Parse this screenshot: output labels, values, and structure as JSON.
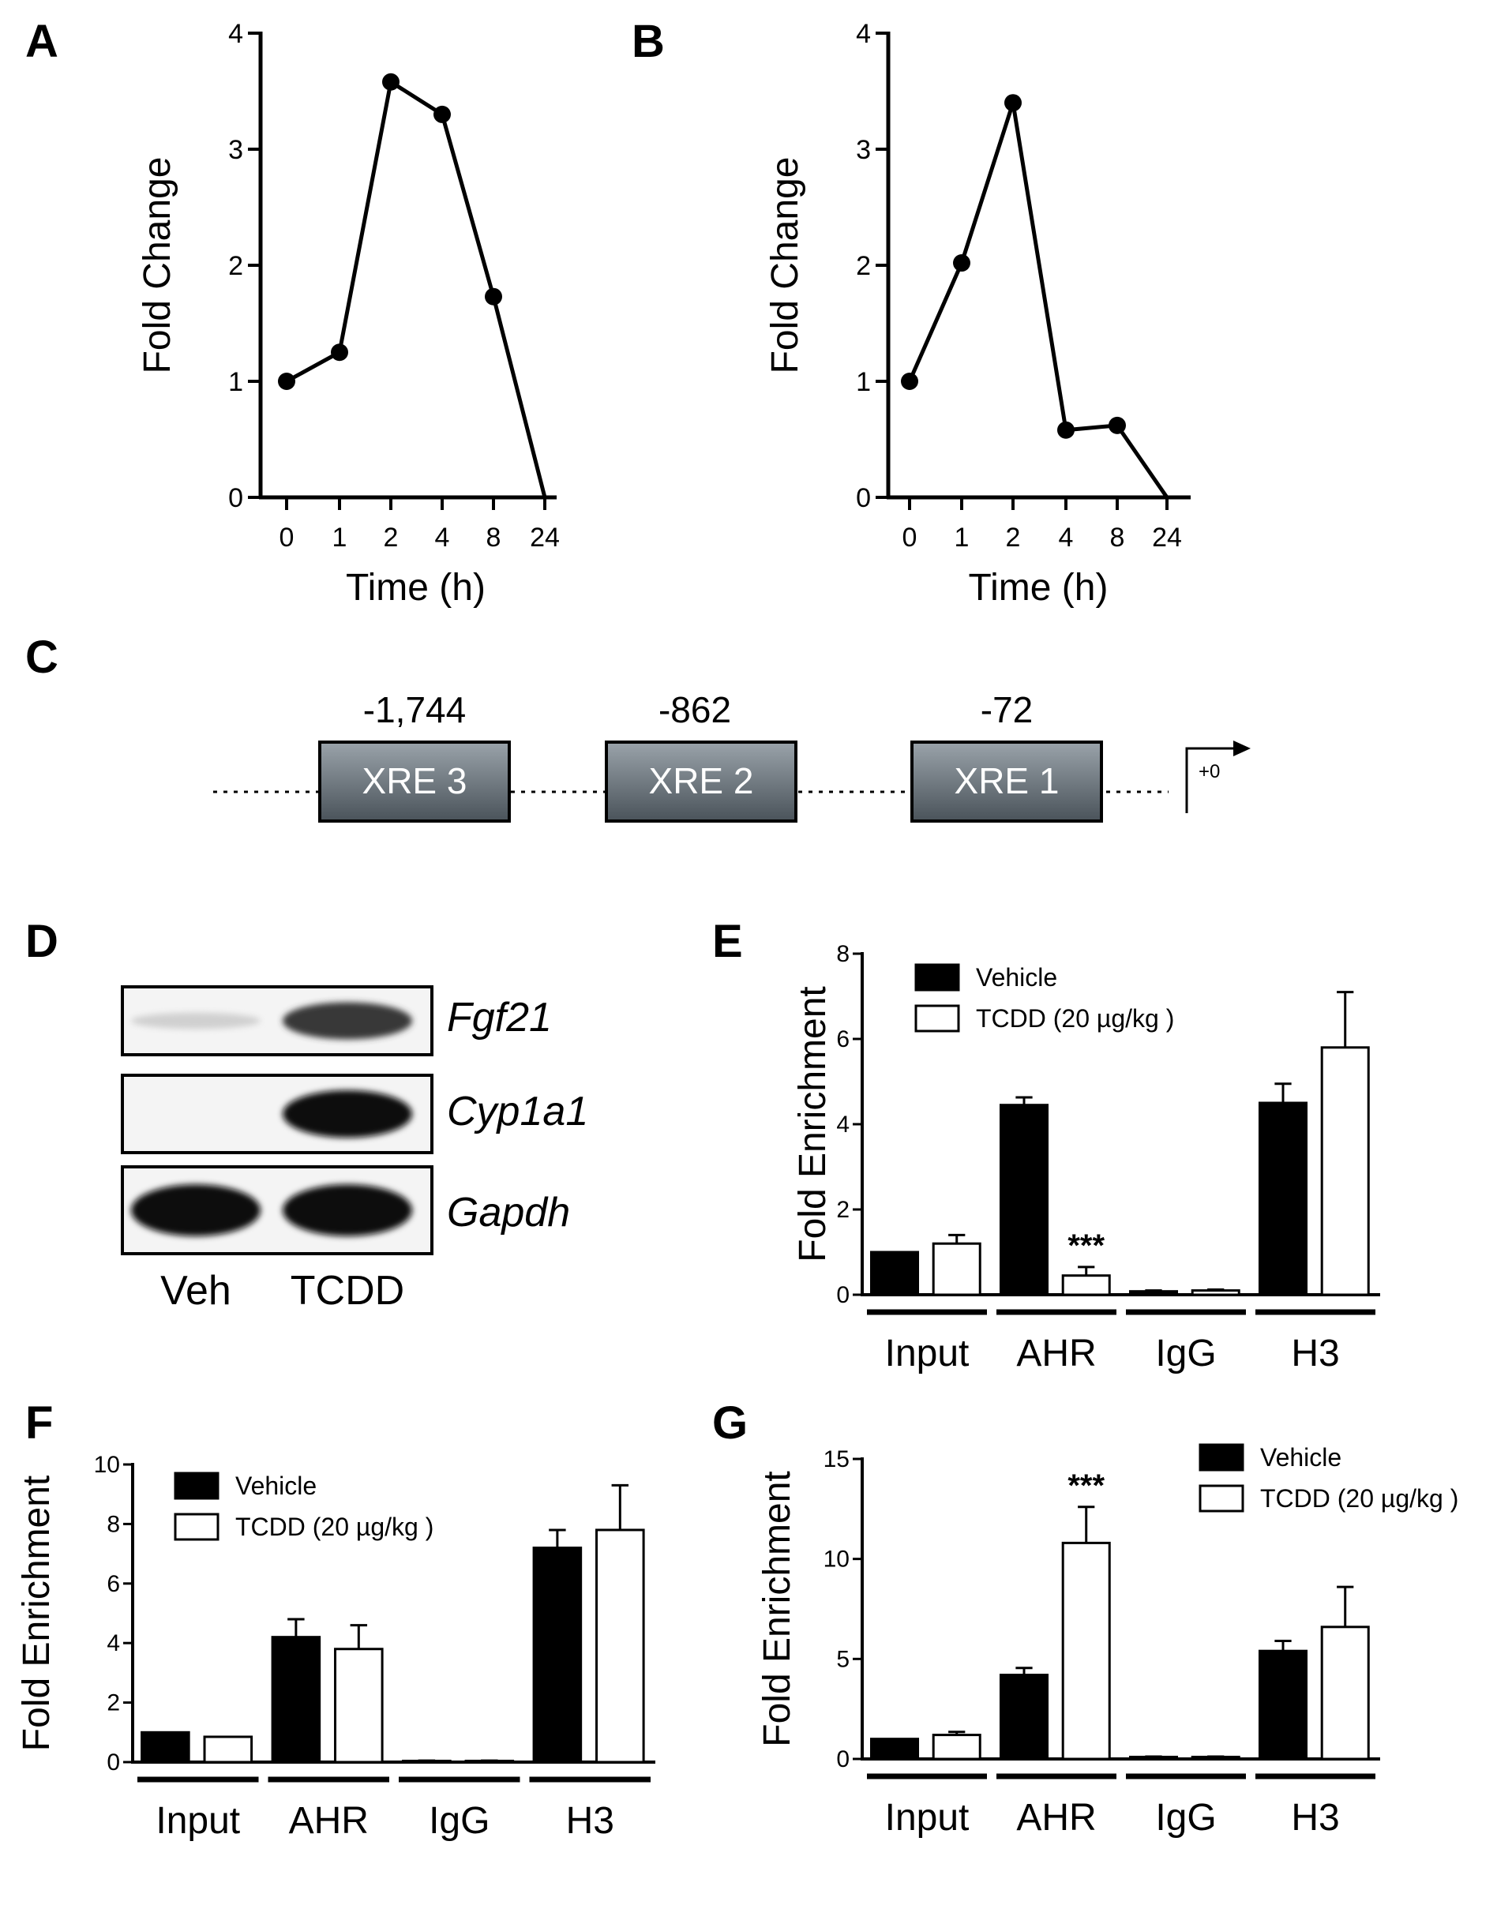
{
  "panel_labels": [
    "A",
    "B",
    "C",
    "D",
    "E",
    "F",
    "G"
  ],
  "chart_data": [
    {
      "panel": "A",
      "type": "line",
      "categories": [
        "0",
        "1",
        "2",
        "4",
        "8",
        "24"
      ],
      "values": [
        1.0,
        1.25,
        3.58,
        3.3,
        1.73,
        0.0
      ],
      "xlabel": "Time (h)",
      "ylabel": "Fold Change",
      "ylim": [
        0,
        4
      ],
      "yticks": [
        "0",
        "1",
        "2",
        "3",
        "4"
      ]
    },
    {
      "panel": "B",
      "type": "line",
      "categories": [
        "0",
        "1",
        "2",
        "4",
        "8",
        "24"
      ],
      "values": [
        1.0,
        2.02,
        3.4,
        0.58,
        0.62,
        0.0
      ],
      "xlabel": "Time (h)",
      "ylabel": "Fold Change",
      "ylim": [
        0,
        4
      ],
      "yticks": [
        "0",
        "1",
        "2",
        "3",
        "4"
      ]
    },
    {
      "panel": "E",
      "type": "bar",
      "categories": [
        "Input",
        "AHR",
        "IgG",
        "H3"
      ],
      "series": [
        {
          "name": "Vehicle",
          "color": "#000000",
          "values": [
            1.0,
            4.45,
            0.08,
            4.5
          ],
          "errors": [
            0.0,
            0.18,
            0.02,
            0.45
          ]
        },
        {
          "name": "TCDD (20 µg/kg )",
          "color": "#ffffff",
          "values": [
            1.2,
            0.45,
            0.1,
            5.8
          ],
          "errors": [
            0.2,
            0.2,
            0.02,
            1.3
          ]
        }
      ],
      "annotations": [
        {
          "text": "***",
          "category": "AHR",
          "series": "TCDD (20 µg/kg )"
        }
      ],
      "ylabel": "Fold Enrichment",
      "ylim": [
        0,
        8
      ],
      "yticks": [
        "0",
        "2",
        "4",
        "6",
        "8"
      ],
      "legend": "top-left"
    },
    {
      "panel": "F",
      "type": "bar",
      "categories": [
        "Input",
        "AHR",
        "IgG",
        "H3"
      ],
      "series": [
        {
          "name": "Vehicle",
          "color": "#000000",
          "values": [
            1.0,
            4.2,
            0.04,
            7.2
          ],
          "errors": [
            0.0,
            0.6,
            0.01,
            0.6
          ]
        },
        {
          "name": "TCDD (20 µg/kg )",
          "color": "#ffffff",
          "values": [
            0.85,
            3.8,
            0.04,
            7.8
          ],
          "errors": [
            0.0,
            0.8,
            0.01,
            1.5
          ]
        }
      ],
      "ylabel": "Fold Enrichment",
      "ylim": [
        0,
        10
      ],
      "yticks": [
        "0",
        "2",
        "4",
        "6",
        "8",
        "10"
      ],
      "legend": "top-left"
    },
    {
      "panel": "G",
      "type": "bar",
      "categories": [
        "Input",
        "AHR",
        "IgG",
        "H3"
      ],
      "series": [
        {
          "name": "Vehicle",
          "color": "#000000",
          "values": [
            1.0,
            4.2,
            0.1,
            5.4
          ],
          "errors": [
            0.0,
            0.35,
            0.02,
            0.5
          ]
        },
        {
          "name": "TCDD (20 µg/kg )",
          "color": "#ffffff",
          "values": [
            1.2,
            10.8,
            0.1,
            6.6
          ],
          "errors": [
            0.15,
            1.8,
            0.02,
            2.0
          ]
        }
      ],
      "annotations": [
        {
          "text": "***",
          "category": "AHR",
          "series": "TCDD (20 µg/kg )"
        }
      ],
      "ylabel": "Fold Enrichment",
      "ylim": [
        0,
        15
      ],
      "yticks": [
        "0",
        "5",
        "10",
        "15"
      ],
      "legend": "top-right"
    }
  ],
  "promoter": {
    "elements": [
      {
        "label": "XRE 3",
        "position": "-1,744"
      },
      {
        "label": "XRE 2",
        "position": "-862"
      },
      {
        "label": "XRE 1",
        "position": "-72"
      }
    ],
    "tss_label": "+0"
  },
  "gel": {
    "lanes": [
      "Veh",
      "TCDD"
    ],
    "rows": [
      {
        "gene": "Fgf21",
        "veh_band": 0.12,
        "tcdd_band": 0.8
      },
      {
        "gene": "Cyp1a1",
        "veh_band": 0.0,
        "tcdd_band": 1.0
      },
      {
        "gene": "Gapdh",
        "veh_band": 1.0,
        "tcdd_band": 1.0
      }
    ]
  }
}
